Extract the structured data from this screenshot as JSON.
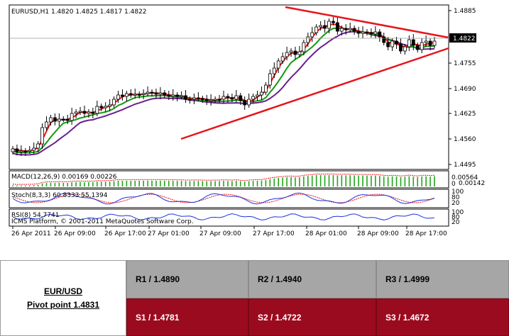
{
  "chart": {
    "title": "EURUSD,H1  1.4820 1.4825 1.4817 1.4822",
    "price_labels": [
      "1.4885",
      "1.4755",
      "1.4690",
      "1.4625",
      "1.4560",
      "1.4495"
    ],
    "current_price": "1.4822",
    "time_labels": [
      "26 Apr 2011",
      "26 Apr 09:00",
      "26 Apr 17:00",
      "27 Apr 01:00",
      "27 Apr 09:00",
      "27 Apr 17:00",
      "28 Apr 01:00",
      "28 Apr 09:00",
      "28 Apr 17:00"
    ],
    "macd": {
      "label": "MACD(12,26,9) 0.00169 0.00226",
      "scale_top": "0.00564",
      "scale_mid": "0.00142",
      "scale_low": "0"
    },
    "stoch": {
      "label": "Stoch(8,3,3) 60.8333 55.1394",
      "scale_top": "100",
      "scale_mid": "80",
      "scale_low": "20"
    },
    "rsi": {
      "label": "RSI(8) 54.7741",
      "scale_top": "100",
      "scale_mid": "80",
      "scale_low": "20"
    },
    "copyright": "ICMS Platform, © 2001-2011 MetaQuotes Software Corp.",
    "colors": {
      "bull": "#ffffff",
      "bear": "#000000",
      "ma_fast": "#e8141b",
      "ma_mid": "#139a10",
      "ma_slow": "#6a1f8f",
      "trendline": "#e8141b",
      "macd_hist": "#22a51a",
      "macd_signal": "#e8141b",
      "stoch_main": "#1a34e0",
      "stoch_signal": "#e8141b",
      "rsi": "#1a34e0"
    }
  },
  "pivot": {
    "pair": "EUR/USD",
    "pivot_point": "Pivot point 1.4831",
    "r1": "R1 / 1.4890",
    "r2": "R2 / 1.4940",
    "r3": "R3 / 1.4999",
    "s1": "S1 / 1.4781",
    "s2": "S2 / 1.4722",
    "s3": "S3 / 1.4672",
    "colors": {
      "resistance_bg": "#a6a6a6",
      "support_bg": "#9b0b1f",
      "support_text": "#ffffff"
    }
  }
}
